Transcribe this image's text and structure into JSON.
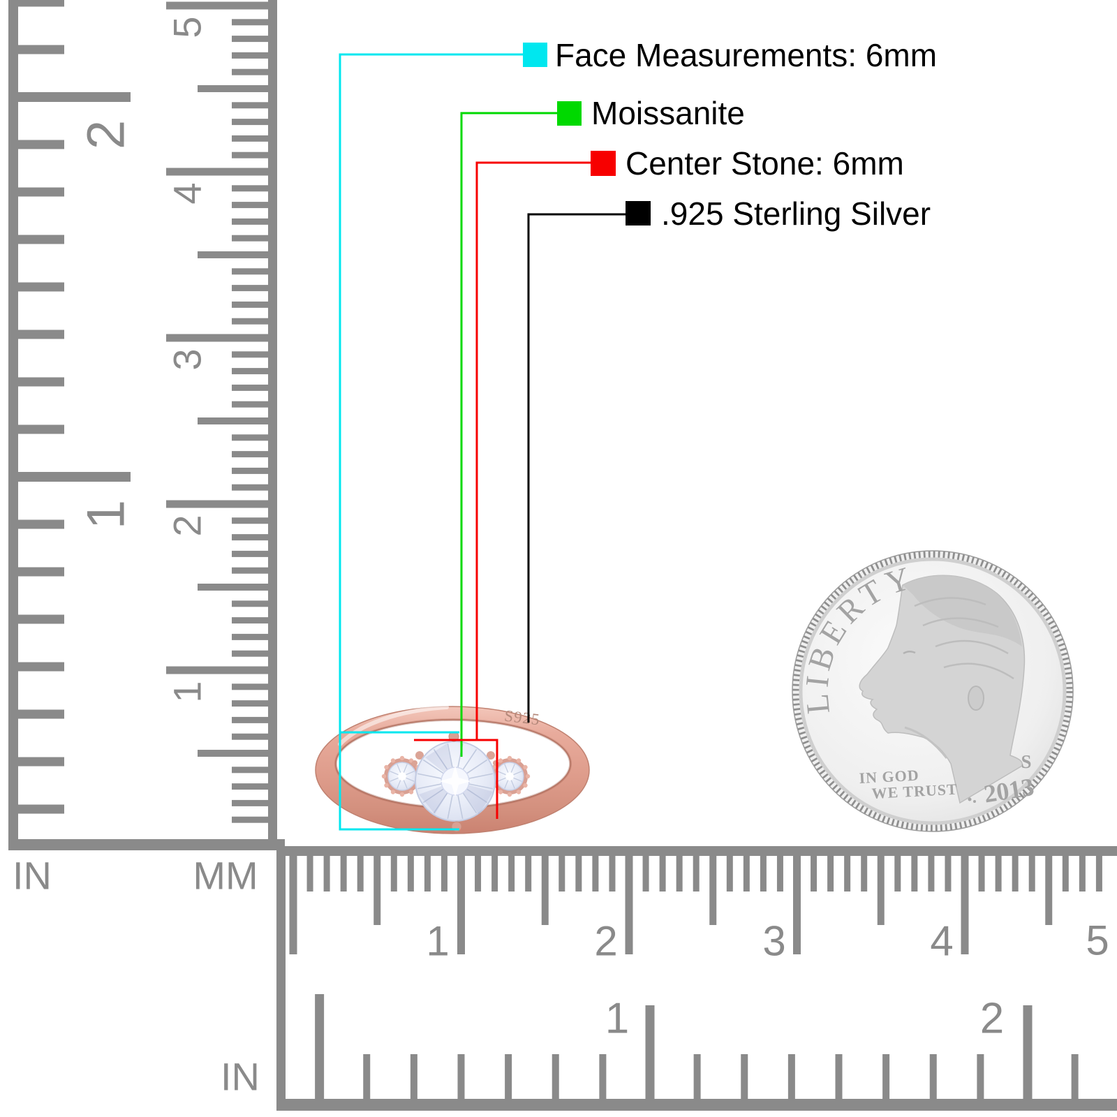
{
  "legend": {
    "items": [
      {
        "label": "Face Measurements: 6mm",
        "color": "#00e7ef"
      },
      {
        "label": "Moissanite",
        "color": "#00d900"
      },
      {
        "label": "Center Stone: 6mm",
        "color": "#f70000"
      },
      {
        "label": ".925 Sterling Silver",
        "color": "#000000"
      }
    ]
  },
  "rulers": {
    "left_inch": {
      "unit_label": "IN",
      "numbers": [
        "2",
        "1"
      ]
    },
    "left_cm": {
      "unit_label": "MM",
      "numbers": [
        "5",
        "4",
        "3",
        "2",
        "1"
      ]
    },
    "bottom_cm": {
      "numbers": [
        "1",
        "2",
        "3",
        "4",
        "5"
      ]
    },
    "bottom_inch": {
      "unit_label": "IN",
      "numbers": [
        "1",
        "2"
      ]
    },
    "tick_color": "#8a8a8a"
  },
  "ring": {
    "engraving": "S925"
  },
  "coin": {
    "legend_top": "LIBERTY",
    "motto_line1": "IN GOD",
    "motto_line2": "WE TRUST",
    "mint_mark": "S",
    "year": "2013"
  }
}
